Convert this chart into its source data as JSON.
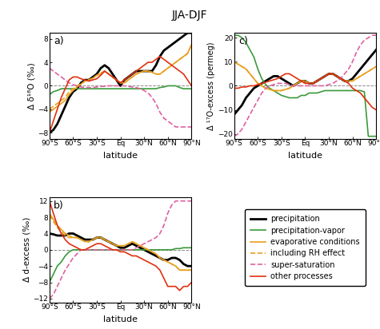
{
  "title": "JJA-DJF",
  "latitudes": [
    -90,
    -85,
    -80,
    -75,
    -70,
    -65,
    -60,
    -55,
    -50,
    -45,
    -40,
    -35,
    -30,
    -25,
    -20,
    -15,
    -10,
    -5,
    0,
    5,
    10,
    15,
    20,
    25,
    30,
    35,
    40,
    45,
    50,
    55,
    60,
    65,
    70,
    75,
    80,
    85,
    90
  ],
  "xtick_labels": [
    "90°S",
    "60°S",
    "30°S",
    "Eq",
    "30°N",
    "60°N",
    "90°N"
  ],
  "xtick_pos": [
    -90,
    -60,
    -30,
    0,
    30,
    60,
    90
  ],
  "panel_a": {
    "label": "a)",
    "ylabel": "Δ δ¹⁸O (‰)",
    "ylim": [
      -9,
      9
    ],
    "yticks": [
      -8,
      -4,
      0,
      4,
      8
    ],
    "precipitation": [
      -8,
      -7.5,
      -6.5,
      -5,
      -3.5,
      -2,
      -1,
      -0.5,
      0.5,
      1,
      1,
      1.5,
      2,
      3,
      3.5,
      3,
      2,
      1,
      0,
      1,
      1.5,
      2,
      2.5,
      2.5,
      2.5,
      2.5,
      2.5,
      3.5,
      5,
      6,
      6.5,
      7,
      7.5,
      8,
      8.5,
      9,
      9
    ],
    "precip_vapor": [
      -1.5,
      -1,
      -0.8,
      -0.5,
      -0.5,
      -0.5,
      -0.5,
      -0.5,
      -0.5,
      -0.5,
      -0.5,
      -0.5,
      -0.5,
      -0.5,
      -0.5,
      -0.5,
      -0.5,
      -0.5,
      -0.5,
      -0.5,
      -0.5,
      -0.5,
      -0.5,
      -0.5,
      -0.5,
      -0.5,
      -0.5,
      -0.5,
      -0.3,
      -0.2,
      0,
      0,
      0,
      -0.3,
      -0.5,
      -0.5,
      -0.5
    ],
    "evap_conditions": [
      -4.5,
      -4,
      -3.5,
      -3,
      -2.5,
      -1.5,
      -0.8,
      -0.2,
      0.3,
      0.8,
      1,
      1.3,
      1.8,
      2,
      2.5,
      2,
      1.5,
      1,
      0.5,
      0.5,
      1,
      1.5,
      2,
      2.3,
      2.5,
      2.5,
      2.3,
      2,
      2,
      2.5,
      3,
      3.5,
      4,
      4.5,
      5,
      5.5,
      7
    ],
    "including_RH": [
      -4,
      -3.5,
      -3,
      -2.5,
      -2,
      -1,
      -0.5,
      0,
      0.3,
      0.8,
      1,
      1.3,
      1.8,
      2.2,
      2.5,
      2,
      1.5,
      1,
      0.5,
      0.5,
      1,
      1.5,
      2,
      2.3,
      2.5,
      2.5,
      2.3,
      2,
      2,
      2.5,
      3,
      3.5,
      4,
      4.5,
      5,
      5.5,
      7
    ],
    "super_sat": [
      3,
      2.5,
      2,
      1.5,
      1,
      0.5,
      0.2,
      0,
      -0.2,
      -0.3,
      -0.3,
      -0.3,
      -0.2,
      -0.1,
      -0.1,
      0,
      0,
      0,
      0,
      0,
      -0.1,
      -0.2,
      -0.3,
      -0.5,
      -0.8,
      -1.2,
      -2,
      -3,
      -4.5,
      -5.5,
      -6,
      -6.5,
      -7,
      -7,
      -7,
      -7,
      -7
    ],
    "other": [
      -8,
      -6,
      -4,
      -2,
      -0.5,
      1,
      1.5,
      1.5,
      1.2,
      1,
      0.8,
      1,
      1.2,
      1.8,
      2.5,
      2,
      1.5,
      1,
      0.5,
      1,
      1.5,
      2,
      2.5,
      3,
      3.5,
      4,
      4,
      4.5,
      5,
      4.5,
      4,
      3.5,
      3,
      2.5,
      2,
      1,
      0
    ]
  },
  "panel_b": {
    "label": "b)",
    "ylabel": "Δ d-excess (‰)",
    "ylim": [
      -13,
      13
    ],
    "yticks": [
      -12,
      -8,
      -4,
      0,
      4,
      8,
      12
    ],
    "precipitation": [
      4,
      3.8,
      3.5,
      3.5,
      3.5,
      4,
      4,
      3.5,
      3,
      2.5,
      2.5,
      2.5,
      3,
      3,
      2.5,
      2,
      1.5,
      1,
      0.5,
      0.5,
      1,
      1.5,
      1,
      0.5,
      0,
      -0.5,
      -1,
      -1.5,
      -2,
      -2.5,
      -2.5,
      -2,
      -2,
      -2.5,
      -3.5,
      -4,
      -4
    ],
    "precip_vapor": [
      -8,
      -6,
      -4,
      -3,
      -1.5,
      -0.5,
      0,
      0,
      0,
      0,
      0,
      0,
      0,
      0,
      0,
      0,
      0,
      0,
      0,
      0,
      0,
      0,
      0,
      0,
      0,
      0,
      0,
      0,
      0,
      0,
      0,
      0,
      0.3,
      0.3,
      0.5,
      0.5,
      0.5
    ],
    "evap_conditions": [
      9,
      7.5,
      6,
      5,
      4,
      3.5,
      3,
      3,
      2.5,
      2,
      2,
      2.5,
      3,
      3,
      2.5,
      2,
      1.5,
      1,
      1,
      1,
      1.5,
      2,
      1.5,
      1,
      0.5,
      0,
      -0.5,
      -1,
      -2,
      -2.5,
      -3,
      -3.5,
      -4,
      -5,
      -5,
      -5,
      -5
    ],
    "including_RH": [
      8.5,
      7,
      5.5,
      4.5,
      3.5,
      3,
      3,
      3,
      2.5,
      2,
      2,
      2.5,
      3,
      3,
      2.5,
      2,
      1.5,
      1,
      1,
      1,
      1.5,
      2,
      1.5,
      1,
      0.5,
      0,
      -0.5,
      -1,
      -2,
      -2.5,
      -3,
      -3.5,
      -4,
      -5,
      -5,
      -5,
      -5
    ],
    "super_sat": [
      -12,
      -11,
      -9,
      -7,
      -5,
      -3.5,
      -2,
      -1,
      0,
      0,
      0,
      0,
      0,
      0,
      0,
      0,
      0,
      0,
      0,
      0,
      0,
      0,
      0.5,
      1,
      1.5,
      2,
      2.5,
      3,
      4,
      6,
      9,
      11,
      12,
      12,
      12,
      12,
      12
    ],
    "other": [
      12,
      9,
      6,
      4,
      2.5,
      1.5,
      1,
      0.5,
      0,
      0,
      0.5,
      1,
      1.5,
      1.5,
      1,
      0.5,
      0,
      0,
      -0.5,
      -0.5,
      -1,
      -1.5,
      -1.5,
      -2,
      -2.5,
      -3,
      -3.5,
      -4,
      -5,
      -7,
      -9,
      -9,
      -9,
      -10,
      -9,
      -9,
      -8
    ]
  },
  "panel_c": {
    "label": "c)",
    "ylabel": "Δ ¹⁷O-excess (permeg)",
    "ylim": [
      -22,
      22
    ],
    "yticks": [
      -20,
      -10,
      0,
      10,
      20
    ],
    "precipitation": [
      -12,
      -10,
      -8,
      -5,
      -3,
      -1,
      0,
      1,
      2,
      3,
      4,
      4,
      3,
      2,
      1,
      0,
      1,
      2,
      2,
      1,
      1,
      2,
      3,
      4,
      5,
      5,
      4,
      3,
      2,
      2,
      3,
      5,
      7,
      9,
      11,
      13,
      15
    ],
    "precip_vapor": [
      21,
      21,
      20,
      18,
      15,
      12,
      7,
      3,
      0.5,
      -1,
      -2,
      -3,
      -4,
      -4.5,
      -5,
      -5,
      -5,
      -4,
      -4,
      -3,
      -3,
      -3,
      -2.5,
      -2,
      -2,
      -2,
      -2,
      -2,
      -2,
      -2,
      -2,
      -2,
      -2,
      -2.5,
      -21,
      -21,
      -21
    ],
    "evap_conditions": [
      10,
      9,
      8,
      7,
      5,
      3,
      1,
      0,
      -1,
      -1.5,
      -2,
      -2,
      -2,
      -1.5,
      -1,
      0,
      1,
      2,
      2,
      1,
      1,
      2,
      3,
      4,
      5,
      5,
      4,
      3,
      2,
      2,
      2,
      3,
      4,
      5,
      6,
      7,
      8
    ],
    "including_RH": [
      10,
      9,
      8,
      7,
      5,
      3,
      1,
      0,
      -1,
      -1.5,
      -2,
      -2,
      -2,
      -1.5,
      -1,
      0,
      1,
      2,
      2,
      1,
      1,
      2,
      3,
      4,
      5,
      5,
      4,
      3,
      2,
      2,
      2,
      3,
      4,
      5,
      6,
      7,
      8
    ],
    "super_sat": [
      -21,
      -20,
      -18,
      -15,
      -12,
      -9,
      -6,
      -3,
      -1,
      0,
      0.5,
      1,
      1,
      1,
      0.5,
      0,
      0,
      0,
      0,
      0,
      0,
      0,
      0,
      0,
      0.5,
      1,
      2,
      3,
      5,
      7,
      10,
      14,
      17,
      19,
      20,
      21,
      21
    ],
    "other": [
      -1,
      -1,
      -0.5,
      -0.5,
      0,
      0,
      0.5,
      1,
      1.5,
      2,
      2.5,
      3,
      4,
      5,
      5,
      4,
      3,
      2,
      1,
      1,
      1,
      2,
      3,
      4,
      5,
      5,
      4,
      3,
      2,
      1,
      -1,
      -2,
      -3,
      -5,
      -7,
      -9,
      -10
    ]
  },
  "colors": {
    "precipitation": "#000000",
    "precip_vapor": "#3a9a3a",
    "evap_conditions": "#e8a020",
    "including_RH": "#e8a020",
    "super_sat": "#e060a0",
    "other": "#e03010"
  },
  "line_styles": {
    "precipitation": "-",
    "precip_vapor": "-",
    "evap_conditions": "-",
    "including_RH": "--",
    "super_sat": "--",
    "other": "-"
  },
  "line_widths": {
    "precipitation": 2.0,
    "precip_vapor": 1.2,
    "evap_conditions": 1.2,
    "including_RH": 1.2,
    "super_sat": 1.2,
    "other": 1.2
  },
  "legend_entries": [
    {
      "label": "precipitation",
      "color": "#000000",
      "ls": "-",
      "lw": 2.0
    },
    {
      "label": "precipitation-vapor",
      "color": "#3a9a3a",
      "ls": "-",
      "lw": 1.2
    },
    {
      "label": "evaporative conditions",
      "color": "#e8a020",
      "ls": "-",
      "lw": 1.2
    },
    {
      "label": "including RH effect",
      "color": "#e8a020",
      "ls": "--",
      "lw": 1.2
    },
    {
      "label": "super-saturation",
      "color": "#e060a0",
      "ls": "--",
      "lw": 1.2
    },
    {
      "label": "other processes",
      "color": "#e03010",
      "ls": "-",
      "lw": 1.2
    }
  ]
}
